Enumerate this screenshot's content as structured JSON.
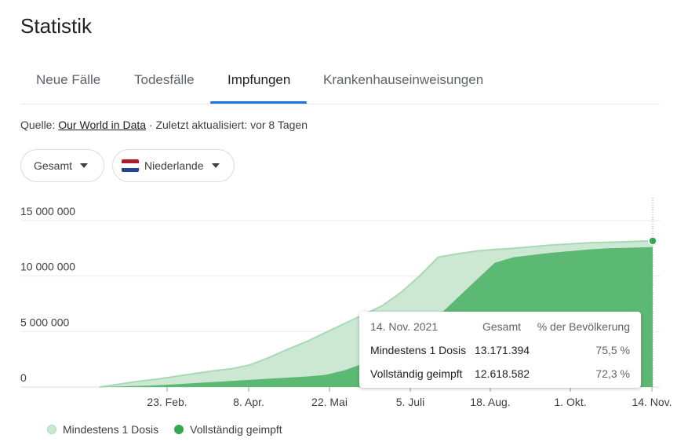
{
  "title": "Statistik",
  "tabs": [
    {
      "label": "Neue Fälle"
    },
    {
      "label": "Todesfälle"
    },
    {
      "label": "Impfungen"
    },
    {
      "label": "Krankenhauseinweisungen"
    }
  ],
  "source": {
    "prefix": "Quelle:",
    "link": "Our World in Data",
    "suffix": "· Zuletzt aktualisiert: vor 8 Tagen"
  },
  "filters": {
    "metric": "Gesamt",
    "country": "Niederlande",
    "flag_colors": [
      "#ae1c28",
      "#ffffff",
      "#21468b"
    ]
  },
  "colors": {
    "first_dose": "#cce8d3",
    "first_dose_line": "#a8dab5",
    "fully": "#5bb974",
    "dot": "#34a853"
  },
  "tooltip": {
    "date": "14. Nov. 2021",
    "col_total": "Gesamt",
    "col_pct": "% der Bevölkerung",
    "rows": [
      {
        "label": "Mindestens 1 Dosis",
        "value": "13.171.394",
        "pct": "75,5 %"
      },
      {
        "label": "Vollständig geimpft",
        "value": "12.618.582",
        "pct": "72,3 %"
      }
    ]
  },
  "chart_data": {
    "type": "area",
    "x_ticks": [
      "23. Feb.",
      "8. Apr.",
      "22. Mai",
      "5. Juli",
      "18. Aug.",
      "1. Okt.",
      "14. Nov."
    ],
    "y_ticks": [
      "15 000 000",
      "10 000 000",
      "5 000 000",
      "0"
    ],
    "ylim": [
      0,
      15000000
    ],
    "x_days": [
      0,
      10,
      20,
      30,
      40,
      50,
      60,
      70,
      80,
      90,
      100,
      110,
      120,
      130,
      140,
      150,
      160,
      170,
      180,
      190,
      200,
      210,
      220,
      230,
      240,
      250,
      260,
      270,
      280,
      294
    ],
    "x_start_date": "2021-01-06",
    "series": [
      {
        "name": "Mindestens 1 Dosis",
        "values": [
          0,
          250000,
          500000,
          700000,
          950000,
          1200000,
          1450000,
          1650000,
          2000000,
          2650000,
          3400000,
          4100000,
          4900000,
          5700000,
          6500000,
          7300000,
          8500000,
          10000000,
          11700000,
          12000000,
          12250000,
          12400000,
          12500000,
          12650000,
          12800000,
          12900000,
          13000000,
          13050000,
          13100000,
          13171394
        ]
      },
      {
        "name": "Vollständig geimpft",
        "values": [
          0,
          50000,
          100000,
          150000,
          250000,
          350000,
          450000,
          550000,
          650000,
          750000,
          850000,
          950000,
          1100000,
          1500000,
          2100000,
          2900000,
          3900000,
          5000000,
          6400000,
          8000000,
          9600000,
          11200000,
          11700000,
          11900000,
          12100000,
          12250000,
          12400000,
          12500000,
          12550000,
          12618582
        ]
      }
    ]
  }
}
